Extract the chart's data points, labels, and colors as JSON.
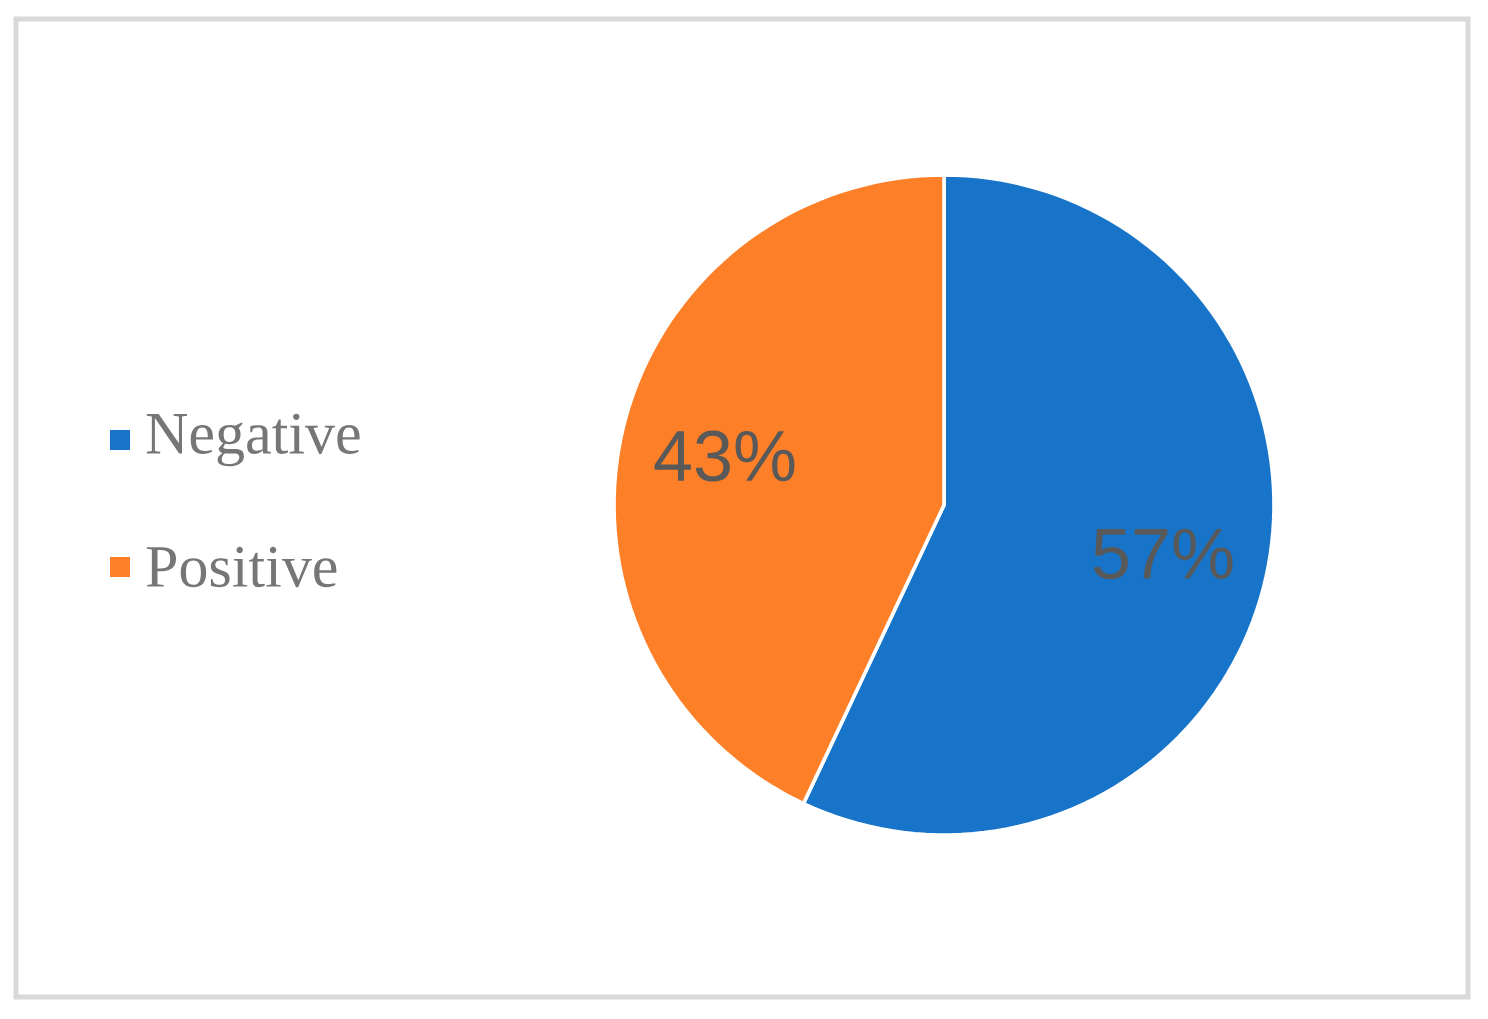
{
  "chart_data": {
    "type": "pie",
    "categories": [
      "Negative",
      "Positive"
    ],
    "values": [
      57,
      43
    ],
    "colors": [
      "#1874c8",
      "#fd7f27"
    ],
    "value_labels": [
      "57%",
      "43%"
    ],
    "legend": "left"
  }
}
